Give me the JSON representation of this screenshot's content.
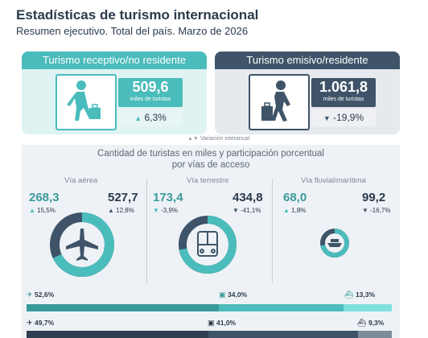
{
  "header": {
    "title": "Estadísticas de turismo internacional",
    "subtitle": "Resumen ejecutivo. Total del país. Marzo de 2026"
  },
  "receptivo": {
    "title": "Turismo receptivo/no residente",
    "value": "509,6",
    "unit": "miles de turistas",
    "variation": "6,3%",
    "trend": "up"
  },
  "emisivo": {
    "title": "Turismo emisivo/residente",
    "value": "1.061,8",
    "unit": "miles de turistas",
    "variation": "-19,9%",
    "trend": "down"
  },
  "legend": {
    "label": "Variación interanual"
  },
  "access": {
    "title_line1": "Cantidad de turistas en miles y participación porcentual",
    "title_line2": "por vías de acceso",
    "columns": [
      {
        "label": "Vía aérea",
        "receptivo_value": "268,3",
        "receptivo_var": "15,5%",
        "emisivo_value": "527,7",
        "emisivo_var": "12,8%",
        "donut_fraction": 0.68
      },
      {
        "label": "Vía terrestre",
        "receptivo_value": "173,4",
        "receptivo_var": "-3,9%",
        "emisivo_value": "434,8",
        "emisivo_var": "-41,1%",
        "donut_fraction": 0.72
      },
      {
        "label": "Vía fluvial/marítima",
        "receptivo_value": "68,0",
        "receptivo_var": "1,8%",
        "emisivo_value": "99,2",
        "emisivo_var": "-16,7%",
        "donut_fraction": 0.72
      }
    ],
    "receptivo_shares": [
      "52,6%",
      "34,0%",
      "13,3%"
    ],
    "emisivo_shares": [
      "49,7%",
      "41,0%",
      "9,3%"
    ],
    "receptivo_share_values": [
      52.6,
      34.0,
      13.3
    ],
    "emisivo_share_values": [
      49.7,
      41.0,
      9.3
    ]
  },
  "colors": {
    "teal": "#4bbcbc",
    "teal_dark": "#3a9a9a",
    "teal_light": "#7fe0dd",
    "navy": "#3f5468",
    "navy_dark": "#2f3f51",
    "slate": "#7d8b9a"
  }
}
